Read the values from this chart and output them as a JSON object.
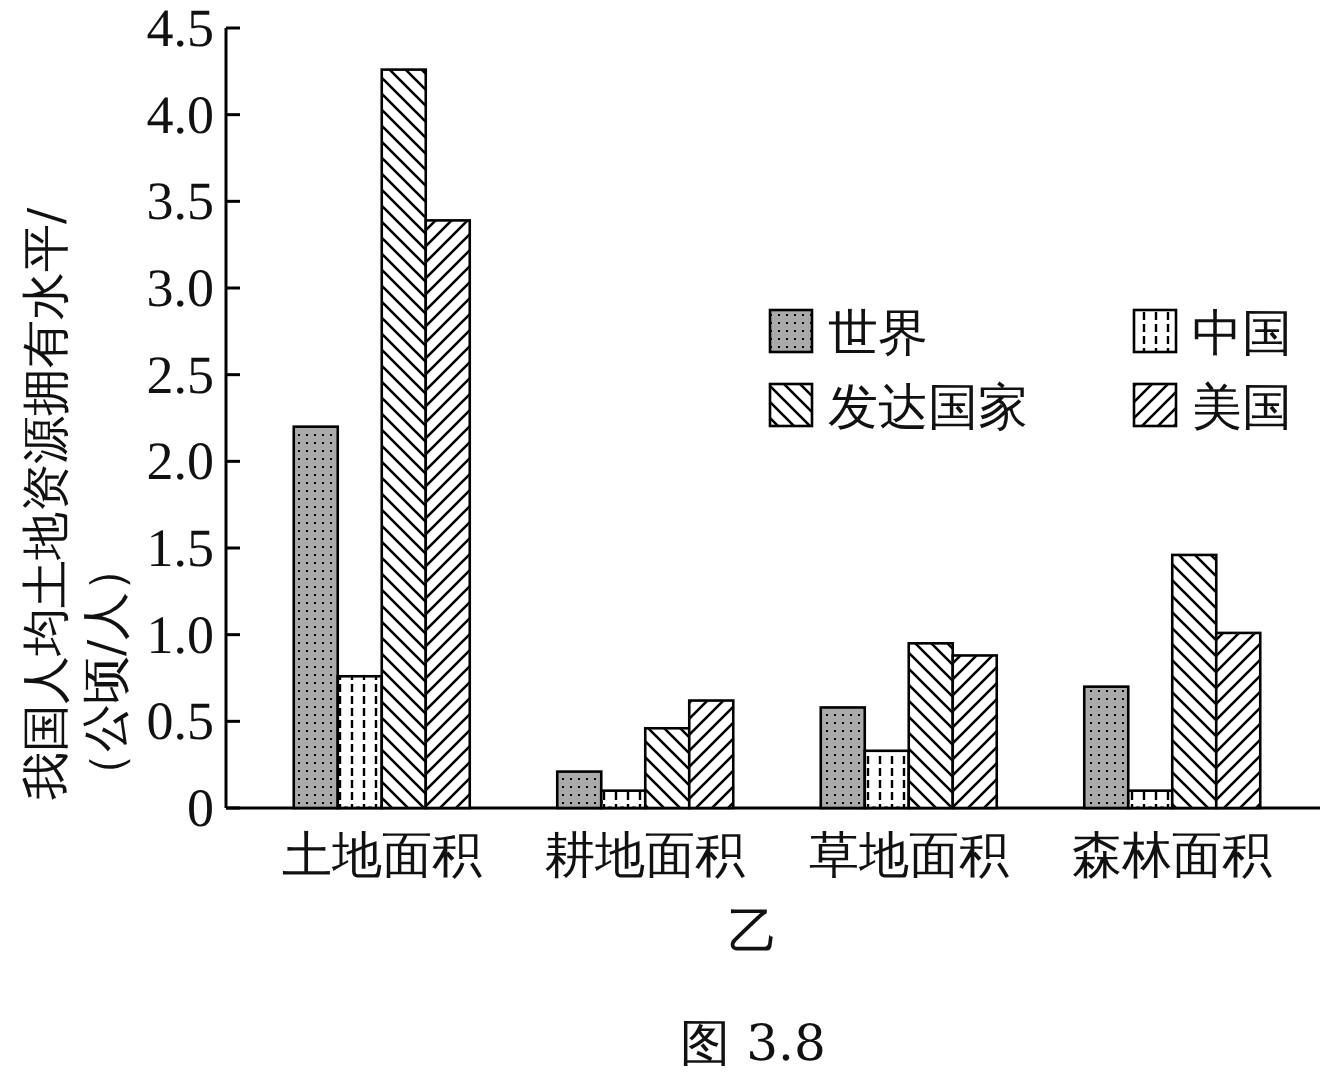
{
  "chart_data": {
    "type": "bar",
    "xlabel": "乙",
    "ylabel": "我国人均土地资源拥有水平/（公顷/人）",
    "annotations": [
      "图 3.8"
    ],
    "categories": [
      "土地面积",
      "耕地面积",
      "草地面积",
      "森林面积"
    ],
    "series": [
      {
        "name": "世界",
        "color": "#000000",
        "values": [
          2.2,
          0.21,
          0.58,
          0.7
        ]
      },
      {
        "name": "中国",
        "color": "#000000",
        "values": [
          0.76,
          0.1,
          0.33,
          0.1
        ]
      },
      {
        "name": "发达国家",
        "color": "#000000",
        "values": [
          4.26,
          0.46,
          0.95,
          1.46
        ]
      },
      {
        "name": "美国",
        "color": "#000000",
        "values": [
          3.39,
          0.62,
          0.88,
          1.01
        ]
      }
    ],
    "ylim": [
      0,
      4.5
    ],
    "yticks": [
      0,
      {
        "value": 0.5,
        "label": "0.5"
      },
      {
        "value": 1,
        "label": "1.0"
      },
      {
        "value": 1.5,
        "label": "1.5"
      },
      {
        "value": 2,
        "label": "2.0"
      },
      {
        "value": 2.5,
        "label": "2.5"
      },
      {
        "value": 3,
        "label": "3.0"
      },
      {
        "value": 3.5,
        "label": "3.5"
      },
      {
        "value": 4,
        "label": "4.0"
      },
      {
        "value": 4.5,
        "label": "4.5"
      }
    ],
    "legend": "right",
    "grid": false
  }
}
